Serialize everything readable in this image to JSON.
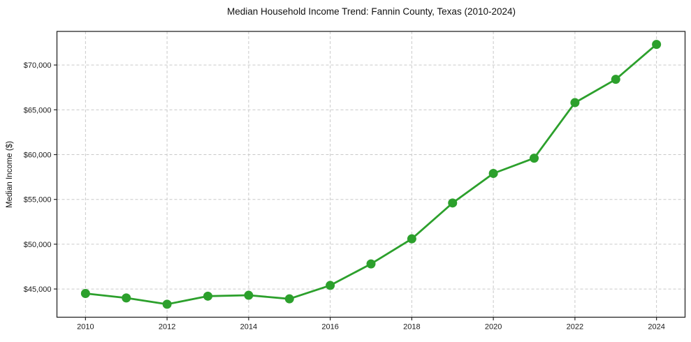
{
  "chart_data": {
    "type": "line",
    "title": "Median Household Income Trend: Fannin County, Texas (2010-2024)",
    "xlabel": "",
    "ylabel": "Median Income ($)",
    "x": [
      2010,
      2011,
      2012,
      2013,
      2014,
      2015,
      2016,
      2017,
      2018,
      2019,
      2020,
      2021,
      2022,
      2023,
      2024
    ],
    "values": [
      44500,
      44000,
      43300,
      44200,
      44300,
      43900,
      45400,
      47800,
      50600,
      54600,
      57900,
      59600,
      65800,
      68400,
      72300
    ],
    "x_ticks": [
      2010,
      2012,
      2014,
      2016,
      2018,
      2020,
      2022,
      2024
    ],
    "x_tick_labels": [
      "2010",
      "2012",
      "2014",
      "2016",
      "2018",
      "2020",
      "2022",
      "2024"
    ],
    "y_ticks": [
      45000,
      50000,
      55000,
      60000,
      65000,
      70000
    ],
    "y_tick_labels": [
      "$45,000",
      "$50,000",
      "$55,000",
      "$60,000",
      "$65,000",
      "$70,000"
    ],
    "xlim": [
      2009.3,
      2024.7
    ],
    "ylim": [
      41850,
      73750
    ],
    "grid": true,
    "legend": false,
    "line_color": "#2ca02c",
    "marker_color": "#2ca02c",
    "grid_color": "#c9c9c9",
    "axis_color": "#262626",
    "tick_label_color": "#1a1a1a",
    "background_color": "#ffffff"
  }
}
